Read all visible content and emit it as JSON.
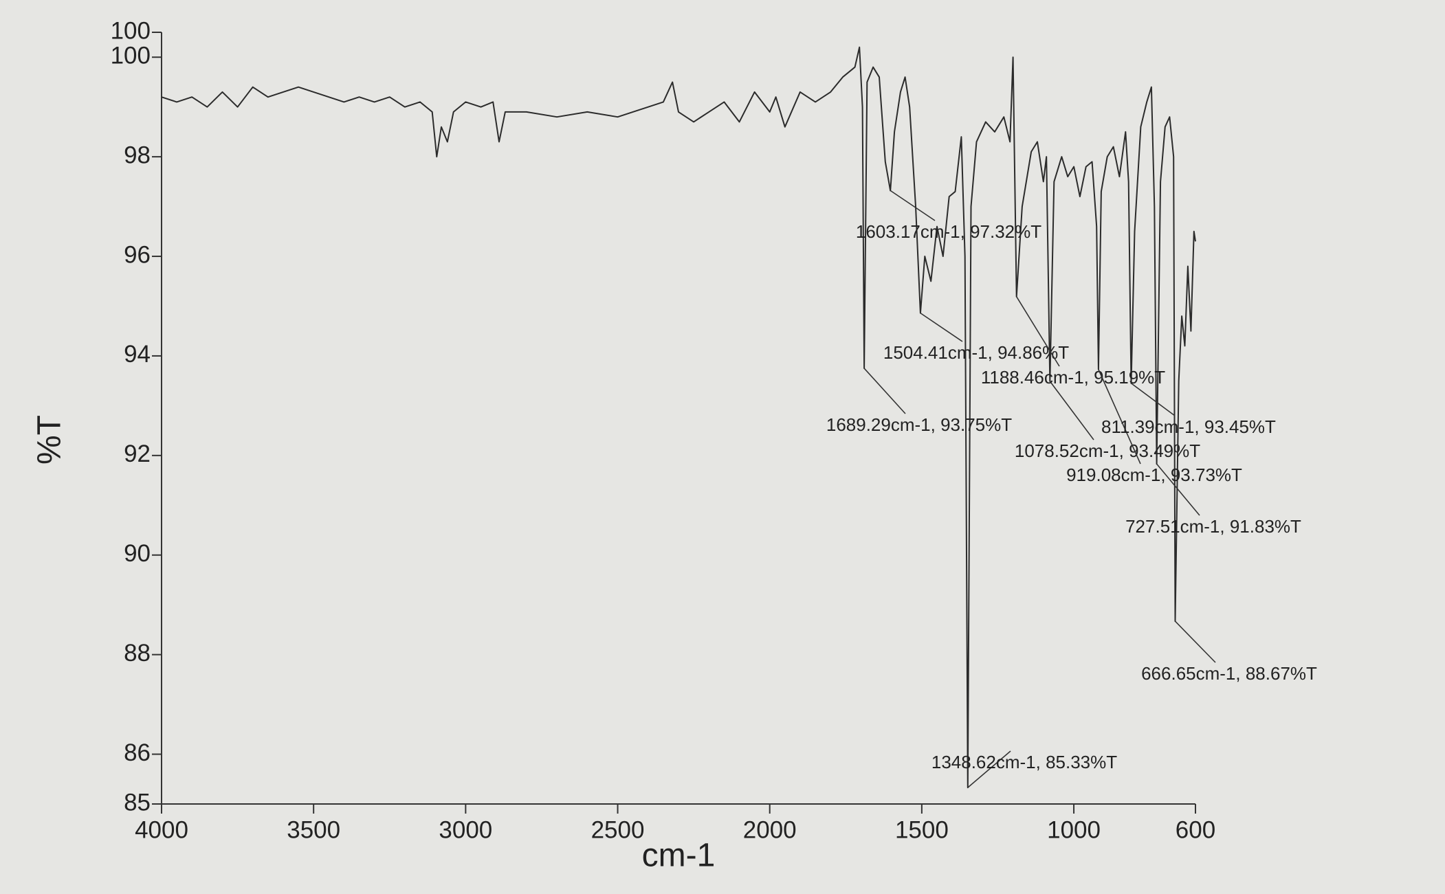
{
  "chart_data": {
    "type": "line",
    "xlabel": "cm-1",
    "ylabel": "%T",
    "color": "#2b2b2b",
    "grid": false,
    "xlim": [
      4000,
      600
    ],
    "ylim": [
      85,
      100.5
    ],
    "xticks": [
      4000,
      3500,
      3000,
      2500,
      2000,
      1500,
      1000,
      600
    ],
    "yticks": [
      85,
      86,
      88,
      90,
      92,
      94,
      96,
      98,
      100,
      {
        "value": 100.5,
        "label": "100"
      }
    ],
    "x": [
      4000,
      3950,
      3900,
      3850,
      3800,
      3750,
      3700,
      3650,
      3600,
      3550,
      3500,
      3450,
      3400,
      3350,
      3300,
      3250,
      3200,
      3150,
      3110,
      3095,
      3080,
      3060,
      3040,
      3000,
      2950,
      2910,
      2890,
      2870,
      2800,
      2700,
      2600,
      2500,
      2450,
      2400,
      2350,
      2320,
      2300,
      2250,
      2200,
      2150,
      2100,
      2050,
      2000,
      1980,
      1950,
      1900,
      1850,
      1800,
      1760,
      1720,
      1705,
      1695,
      1689.29,
      1680,
      1660,
      1640,
      1620,
      1603.17,
      1590,
      1570,
      1555,
      1540,
      1520,
      1504.41,
      1490,
      1470,
      1450,
      1430,
      1410,
      1390,
      1370,
      1358,
      1348.62,
      1338,
      1320,
      1290,
      1260,
      1230,
      1210,
      1200,
      1188.46,
      1170,
      1140,
      1120,
      1100,
      1090,
      1078.52,
      1065,
      1040,
      1020,
      1000,
      980,
      960,
      940,
      925,
      919.08,
      910,
      890,
      870,
      850,
      830,
      820,
      811.39,
      800,
      780,
      760,
      745,
      735,
      727.51,
      715,
      700,
      685,
      672,
      666.65,
      655,
      645,
      635,
      625,
      615,
      605,
      600
    ],
    "values": [
      99.2,
      99.1,
      99.2,
      99.0,
      99.3,
      99.0,
      99.4,
      99.2,
      99.3,
      99.4,
      99.3,
      99.2,
      99.1,
      99.2,
      99.1,
      99.2,
      99.0,
      99.1,
      98.9,
      98.0,
      98.6,
      98.3,
      98.9,
      99.1,
      99.0,
      99.1,
      98.3,
      98.9,
      98.9,
      98.8,
      98.9,
      98.8,
      98.9,
      99.0,
      99.1,
      99.5,
      98.9,
      98.7,
      98.9,
      99.1,
      98.7,
      99.3,
      98.9,
      99.2,
      98.6,
      99.3,
      99.1,
      99.3,
      99.6,
      99.8,
      100.2,
      99.0,
      93.75,
      99.5,
      99.8,
      99.6,
      97.9,
      97.32,
      98.5,
      99.3,
      99.6,
      99.0,
      97.0,
      94.86,
      96.0,
      95.5,
      96.6,
      96.0,
      97.2,
      97.3,
      98.4,
      96.0,
      85.33,
      97.0,
      98.3,
      98.7,
      98.5,
      98.8,
      98.3,
      100.0,
      95.19,
      97.0,
      98.1,
      98.3,
      97.5,
      98.0,
      93.49,
      97.5,
      98.0,
      97.6,
      97.8,
      97.2,
      97.8,
      97.9,
      96.6,
      93.73,
      97.3,
      98.0,
      98.2,
      97.6,
      98.5,
      97.5,
      93.45,
      96.5,
      98.6,
      99.1,
      99.4,
      97.0,
      91.83,
      97.5,
      98.6,
      98.8,
      98.0,
      88.67,
      93.5,
      94.8,
      94.2,
      95.8,
      94.5,
      96.5,
      96.3
    ],
    "annotations": [
      {
        "x": 1689.29,
        "y": 93.75,
        "label": "1689.29cm-1, 93.75%T"
      },
      {
        "x": 1603.17,
        "y": 97.32,
        "label": "1603.17cm-1, 97.32%T"
      },
      {
        "x": 1504.41,
        "y": 94.86,
        "label": "1504.41cm-1, 94.86%T"
      },
      {
        "x": 1348.62,
        "y": 85.33,
        "label": "1348.62cm-1, 85.33%T"
      },
      {
        "x": 1188.46,
        "y": 95.19,
        "label": "1188.46cm-1, 95.19%T"
      },
      {
        "x": 1078.52,
        "y": 93.49,
        "label": "1078.52cm-1, 93.49%T"
      },
      {
        "x": 919.08,
        "y": 93.73,
        "label": "919.08cm-1, 93.73%T"
      },
      {
        "x": 811.39,
        "y": 93.45,
        "label": "811.39cm-1, 93.45%T"
      },
      {
        "x": 727.51,
        "y": 91.83,
        "label": "727.51cm-1, 91.83%T"
      },
      {
        "x": 666.65,
        "y": 88.67,
        "label": "666.65cm-1, 88.67%T"
      }
    ]
  }
}
